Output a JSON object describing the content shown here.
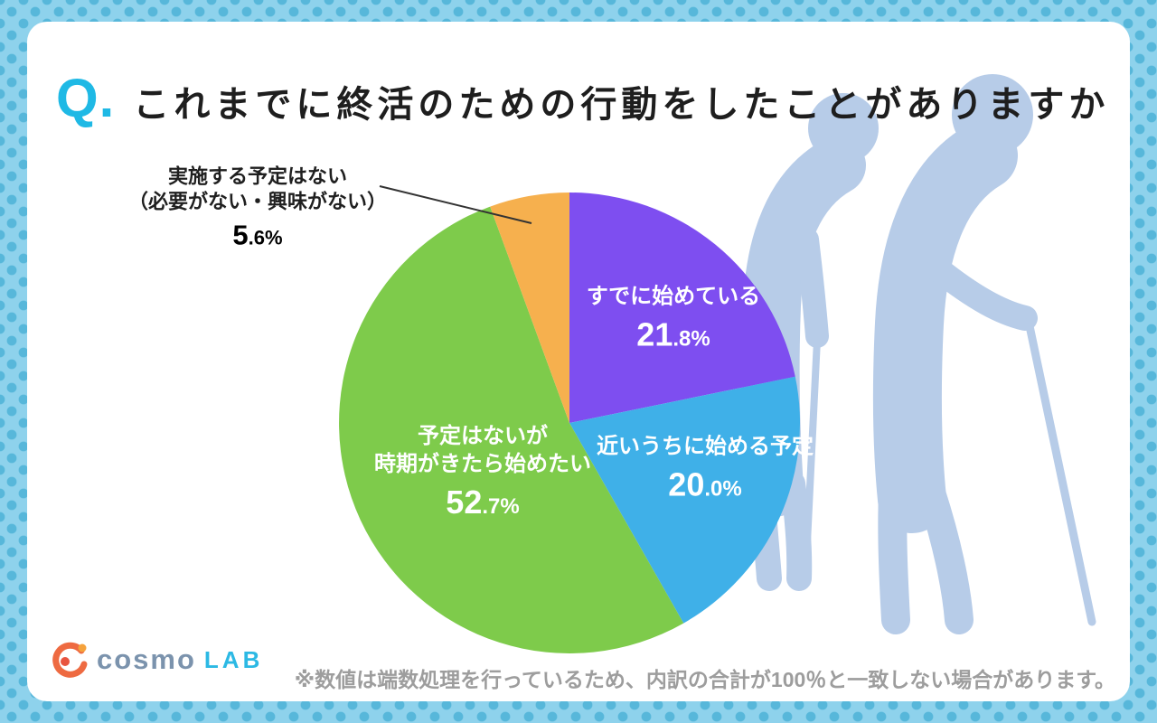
{
  "page": {
    "background_color": "#8ed2ec",
    "dot_color": "#57b7da",
    "card_color": "#ffffff",
    "silhouette_color": "#b7cce8"
  },
  "header": {
    "q_prefix": "Q.",
    "q_color": "#1fb9e5",
    "title": "これまでに終活のための行動をしたことがありますか"
  },
  "chart_data": {
    "type": "pie",
    "title": "これまでに終活のための行動をしたことがありますか",
    "unit": "%",
    "start_angle_deg": 0,
    "direction": "clockwise",
    "legend_position": "labels-on-slices",
    "slices": [
      {
        "id": "already-started",
        "label": "すでに始めている",
        "lines": [
          "すでに始めている"
        ],
        "value": 21.8,
        "color": "#7e4ef0",
        "text_color": "#ffffff"
      },
      {
        "id": "start-soon",
        "label": "近いうちに始める予定",
        "lines": [
          "近いうちに始める予定"
        ],
        "value": 20.0,
        "color": "#3fb0e8",
        "text_color": "#ffffff"
      },
      {
        "id": "start-when-time-comes",
        "label": "予定はないが時期がきたら始めたい",
        "lines": [
          "予定はないが",
          "時期がきたら始めたい"
        ],
        "value": 52.7,
        "color": "#7ecb4b",
        "text_color": "#ffffff"
      },
      {
        "id": "no-plan",
        "label": "実施する予定はない（必要がない・興味がない）",
        "lines": [
          "実施する予定はない",
          "（必要がない・興味がない）"
        ],
        "value": 5.6,
        "color": "#f6b04e",
        "text_color": "#1f1f1f"
      }
    ]
  },
  "footer": {
    "logo_cosmo": "cosmo",
    "logo_lab": "LAB",
    "note": "※数値は端数処理を行っているため、内訳の合計が100％と一致しない場合があります。"
  }
}
